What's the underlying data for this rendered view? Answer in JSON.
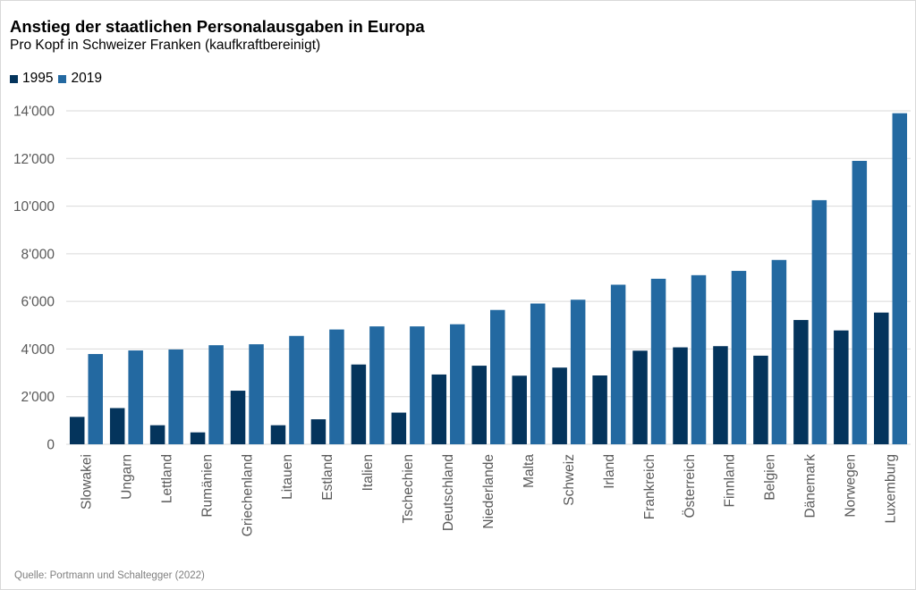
{
  "title": "Anstieg der staatlichen Personalausgaben in Europa",
  "subtitle": "Pro Kopf in Schweizer Franken (kaufkraftbereinigt)",
  "source": "Quelle: Portmann und Schaltegger (2022)",
  "colors": {
    "1995": "#04345c",
    "2019": "#2369a1",
    "grid": "#d9d9d9",
    "text": "#595959"
  },
  "chart_data": {
    "type": "bar",
    "title": "Anstieg der staatlichen Personalausgaben in Europa",
    "subtitle": "Pro Kopf in Schweizer Franken (kaufkraftbereinigt)",
    "xlabel": "",
    "ylabel": "",
    "ylim": [
      0,
      14000
    ],
    "yticks": [
      0,
      2000,
      4000,
      6000,
      8000,
      10000,
      12000,
      14000
    ],
    "ytick_labels": [
      "0",
      "2'000",
      "4'000",
      "6'000",
      "8'000",
      "10'000",
      "12'000",
      "14'000"
    ],
    "grid": true,
    "legend_position": "top-left",
    "categories": [
      "Slowakei",
      "Ungarn",
      "Lettland",
      "Rumänien",
      "Griechenland",
      "Litauen",
      "Estland",
      "Italien",
      "Tschechien",
      "Deutschland",
      "Niederlande",
      "Malta",
      "Schweiz",
      "Irland",
      "Frankreich",
      "Österreich",
      "Finnland",
      "Belgien",
      "Dänemark",
      "Norwegen",
      "Luxemburg"
    ],
    "series": [
      {
        "name": "1995",
        "values": [
          1150,
          1520,
          800,
          500,
          2250,
          800,
          1050,
          3350,
          1330,
          2930,
          3300,
          2880,
          3220,
          2890,
          3930,
          4070,
          4120,
          3720,
          5220,
          4780,
          5530
        ]
      },
      {
        "name": "2019",
        "values": [
          3790,
          3940,
          3980,
          4160,
          4200,
          4550,
          4820,
          4950,
          4950,
          5040,
          5640,
          5910,
          6070,
          6700,
          6950,
          7100,
          7280,
          7740,
          10250,
          11900,
          13900
        ]
      }
    ]
  }
}
